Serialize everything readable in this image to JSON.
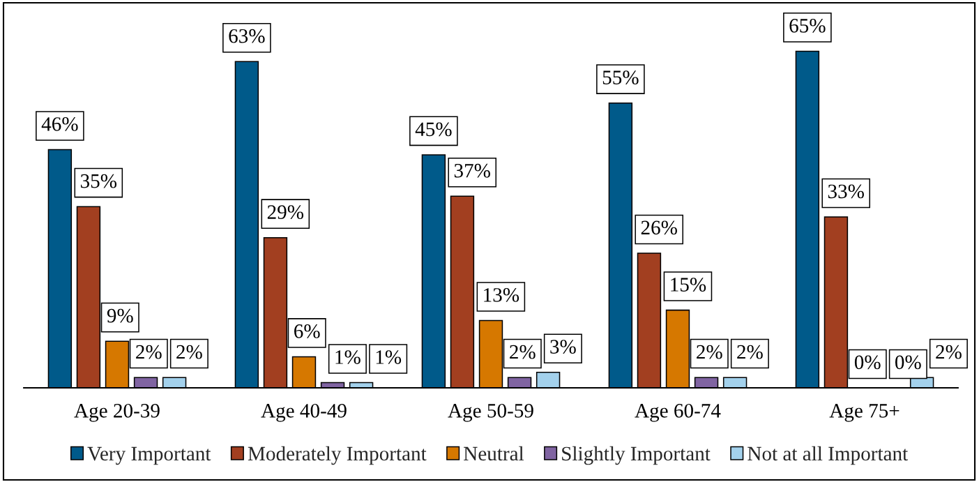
{
  "chart_data": {
    "type": "bar",
    "categories": [
      "Age 20-39",
      "Age 40-49",
      "Age 50-59",
      "Age 60-74",
      "Age 75+"
    ],
    "series": [
      {
        "name": "Very Important",
        "color": "#005a8a",
        "values": [
          46,
          63,
          45,
          55,
          65
        ],
        "value_labels": [
          "46%",
          "63%",
          "45%",
          "55%",
          "65%"
        ]
      },
      {
        "name": "Moderately Important",
        "color": "#a23f20",
        "values": [
          35,
          29,
          37,
          26,
          33
        ],
        "value_labels": [
          "35%",
          "29%",
          "37%",
          "26%",
          "33%"
        ]
      },
      {
        "name": "Neutral",
        "color": "#d67800",
        "values": [
          9,
          6,
          13,
          15,
          0
        ],
        "value_labels": [
          "9%",
          "6%",
          "13%",
          "15%",
          "0%"
        ]
      },
      {
        "name": "Slightly Important",
        "color": "#8064a2",
        "values": [
          2,
          1,
          2,
          2,
          0
        ],
        "value_labels": [
          "2%",
          "1%",
          "2%",
          "2%",
          "0%"
        ]
      },
      {
        "name": "Not at all Important",
        "color": "#a3d1ec",
        "values": [
          2,
          1,
          3,
          2,
          2
        ],
        "value_labels": [
          "2%",
          "1%",
          "3%",
          "2%",
          "2%"
        ]
      }
    ],
    "legend": "bottom",
    "tick_labels": "x"
  }
}
